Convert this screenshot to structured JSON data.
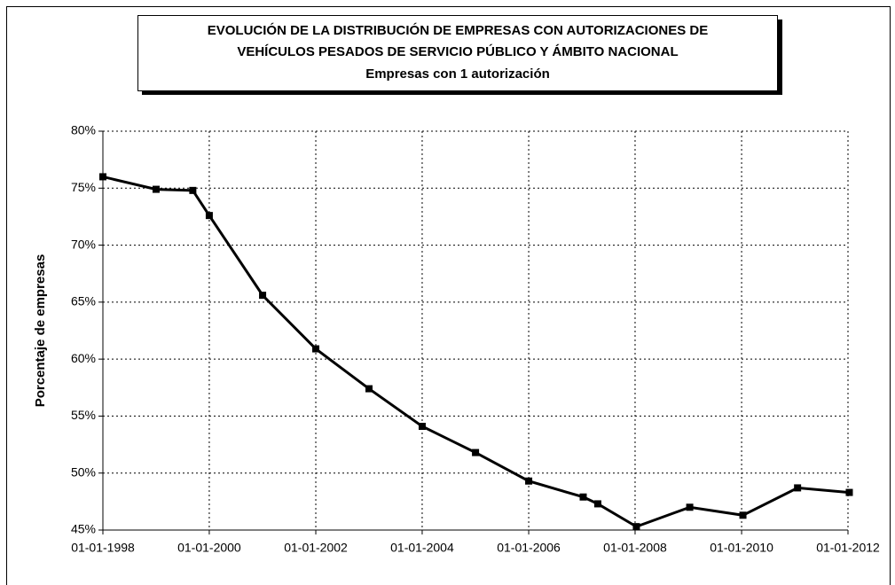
{
  "chart_data": {
    "type": "line",
    "title": [
      "EVOLUCIÓN DE LA DISTRIBUCIÓN DE EMPRESAS CON AUTORIZACIONES DE",
      "VEHÍCULOS PESADOS DE SERVICIO PÚBLICO Y ÁMBITO NACIONAL"
    ],
    "subtitle": "Empresas con 1 autorización",
    "y_label": "Porcentaje de empresas",
    "x": [
      "01-01-1998",
      "01-01-1999",
      "10-09-1999",
      "01-01-2000",
      "01-01-2001",
      "01-01-2002",
      "01-01-2003",
      "01-01-2004",
      "01-01-2005",
      "01-01-2006",
      "10-01-2007",
      "20-04-2007",
      "10-01-2008",
      "10-01-2009",
      "10-01-2010",
      "20-01-2011",
      "10-01-2012"
    ],
    "series": [
      {
        "color": "#000000",
        "values": [
          76.0,
          74.9,
          74.8,
          72.6,
          65.6,
          60.9,
          57.4,
          54.1,
          51.8,
          49.3,
          47.9,
          47.3,
          45.3,
          47.0,
          46.3,
          48.7,
          48.3
        ]
      }
    ],
    "xlim": [
      "01-01-1998",
      "01-01-2012"
    ],
    "xticks": [
      "01-01-1998",
      "01-01-2000",
      "01-01-2002",
      "01-01-2004",
      "01-01-2006",
      "01-01-2008",
      "01-01-2010",
      "01-01-2012"
    ],
    "ylim": [
      45,
      80
    ],
    "yticks": [
      {
        "value": 45,
        "label": "45%"
      },
      {
        "value": 50,
        "label": "50%"
      },
      {
        "value": 55,
        "label": "55%"
      },
      {
        "value": 60,
        "label": "60%"
      },
      {
        "value": 65,
        "label": "65%"
      },
      {
        "value": 70,
        "label": "70%"
      },
      {
        "value": 75,
        "label": "75%"
      },
      {
        "value": 80,
        "label": "80%"
      }
    ],
    "grid": true
  }
}
